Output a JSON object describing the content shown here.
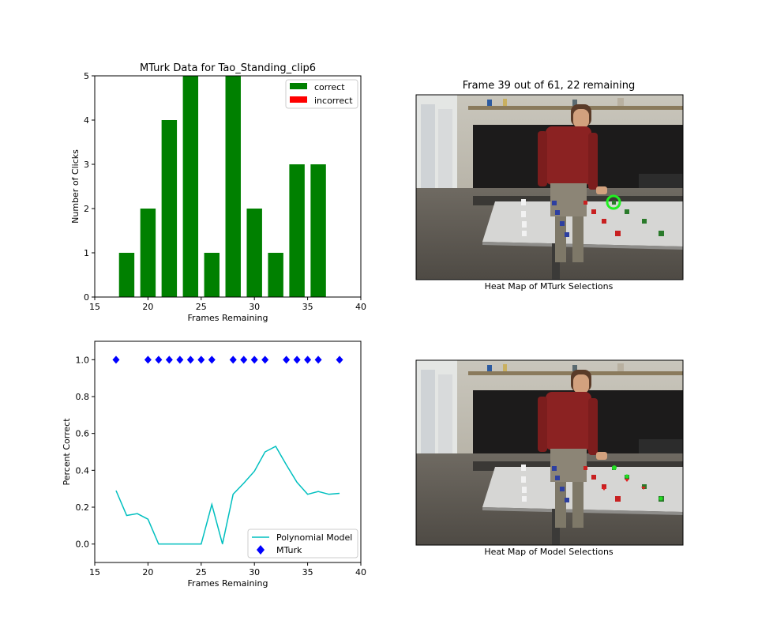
{
  "chart_data": [
    {
      "type": "bar",
      "title": "MTurk Data for Tao_Standing_clip6",
      "xlabel": "Frames Remaining",
      "ylabel": "Number of Clicks",
      "xlim": [
        15,
        40
      ],
      "ylim": [
        0,
        5
      ],
      "xticks": [
        15,
        20,
        25,
        30,
        35,
        40
      ],
      "yticks": [
        0,
        1,
        2,
        3,
        4,
        5
      ],
      "legend_position": "top-right",
      "series": [
        {
          "name": "correct",
          "color": "#008000",
          "x": [
            18,
            20,
            22,
            24,
            26,
            28,
            30,
            32,
            34,
            36
          ],
          "values": [
            1,
            2,
            4,
            5,
            1,
            5,
            2,
            1,
            3,
            3
          ]
        },
        {
          "name": "incorrect",
          "color": "#ff0000",
          "x": [],
          "values": []
        }
      ]
    },
    {
      "type": "line",
      "xlabel": "Frames Remaining",
      "ylabel": "Percent Correct",
      "xlim": [
        15,
        40
      ],
      "ylim": [
        -0.1,
        1.1
      ],
      "xticks": [
        15,
        20,
        25,
        30,
        35,
        40
      ],
      "yticks": [
        "0.0",
        "0.2",
        "0.4",
        "0.6",
        "0.8",
        "1.0"
      ],
      "legend_position": "bottom-right",
      "series": [
        {
          "name": "Polynomial Model",
          "type": "line",
          "color": "#00bfbf",
          "x": [
            17,
            18,
            19,
            20,
            21,
            22,
            23,
            24,
            25,
            26,
            27,
            28,
            29,
            30,
            31,
            32,
            33,
            34,
            35,
            36,
            37,
            38
          ],
          "y": [
            0.29,
            0.155,
            0.165,
            0.135,
            0,
            0,
            0,
            0,
            0,
            0.215,
            0,
            0.27,
            0.33,
            0.395,
            0.5,
            0.53,
            0.43,
            0.335,
            0.27,
            0.285,
            0.27,
            0.275
          ]
        },
        {
          "name": "MTurk",
          "type": "scatter",
          "marker": "diamond",
          "color": "#0000ff",
          "x": [
            17,
            20,
            21,
            22,
            23,
            24,
            25,
            26,
            28,
            29,
            30,
            31,
            33,
            34,
            35,
            36,
            38
          ],
          "y": [
            1,
            1,
            1,
            1,
            1,
            1,
            1,
            1,
            1,
            1,
            1,
            1,
            1,
            1,
            1,
            1,
            1
          ]
        }
      ]
    }
  ],
  "images": {
    "top": {
      "title": "Frame 39 out of 61, 22 remaining",
      "caption": "Heat Map of MTurk Selections"
    },
    "bottom": {
      "caption": "Heat Map of Model Selections"
    }
  }
}
